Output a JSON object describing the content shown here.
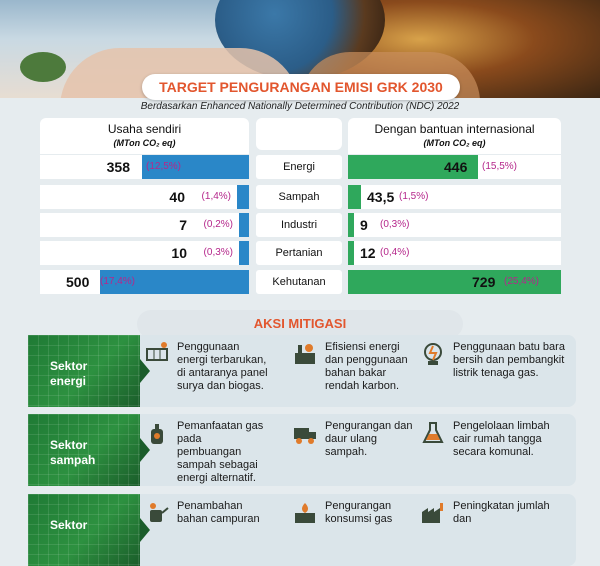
{
  "header": {
    "title": "TARGET PENGURANGAN EMISI GRK 2030",
    "subtitle": "Berdasarkan Enhanced Nationally Determined Contribution (NDC) 2022"
  },
  "columns": {
    "left": {
      "title": "Usaha sendiri",
      "unit": "(MTon CO₂ eq)"
    },
    "right": {
      "title": "Dengan bantuan internasional",
      "unit": "(MTon CO₂ eq)"
    }
  },
  "rows": [
    {
      "sector": "Energi",
      "left_value": "358",
      "left_pct": "(12,5%)",
      "left_share": 0.716,
      "right_value": "446",
      "right_pct": "(15,5%)",
      "right_share": 0.612
    },
    {
      "sector": "Sampah",
      "left_value": "40",
      "left_pct": "(1,4%)",
      "left_share": 0.08,
      "right_value": "43,5",
      "right_pct": "(1,5%)",
      "right_share": 0.06
    },
    {
      "sector": "Industri",
      "left_value": "7",
      "left_pct": "(0,2%)",
      "left_share": 0.014,
      "right_value": "9",
      "right_pct": "(0,3%)",
      "right_share": 0.012
    },
    {
      "sector": "Pertanian",
      "left_value": "10",
      "left_pct": "(0,3%)",
      "left_share": 0.02,
      "right_value": "12",
      "right_pct": "(0,4%)",
      "right_share": 0.016
    },
    {
      "sector": "Kehutanan",
      "left_value": "500",
      "left_pct": "(17,4%)",
      "left_share": 1.0,
      "right_value": "729",
      "right_pct": "(25,4%)",
      "right_share": 1.0
    }
  ],
  "aksi": {
    "title": "AKSI MITIGASI",
    "sectors": [
      {
        "label_1": "Sektor",
        "label_2": "energi",
        "items": [
          {
            "icon": "solar-panel-icon",
            "text": "Penggunaan energi terbarukan, di antaranya panel surya dan biogas."
          },
          {
            "icon": "factory-efficiency-icon",
            "text": "Efisiensi energi dan penggunaan bahan bakar rendah karbon."
          },
          {
            "icon": "coal-plant-icon",
            "text": "Penggunaan batu bara bersih dan pembangkit listrik tenaga gas."
          }
        ]
      },
      {
        "label_1": "Sektor",
        "label_2": "sampah",
        "items": [
          {
            "icon": "gas-bottle-icon",
            "text": "Pemanfaatan gas pada pembuangan sampah sebagai energi alternatif."
          },
          {
            "icon": "recycle-truck-icon",
            "text": "Pengurangan dan daur ulang sampah."
          },
          {
            "icon": "flask-icon",
            "text": "Pengelolaan limbah cair rumah tangga secara komunal."
          }
        ]
      },
      {
        "label_1": "Sektor",
        "label_2": "",
        "items": [
          {
            "icon": "watering-can-icon",
            "text": "Penambahan bahan campuran"
          },
          {
            "icon": "gas-factory-icon",
            "text": "Pengurangan konsumsi gas"
          },
          {
            "icon": "industry-icon",
            "text": "Peningkatan jumlah dan"
          }
        ]
      }
    ]
  },
  "colors": {
    "accent": "#e2562e",
    "left_bar": "#2a87c8",
    "right_bar": "#2fa85c",
    "pct": "#b5278b",
    "sector_green": "#2d9140"
  }
}
